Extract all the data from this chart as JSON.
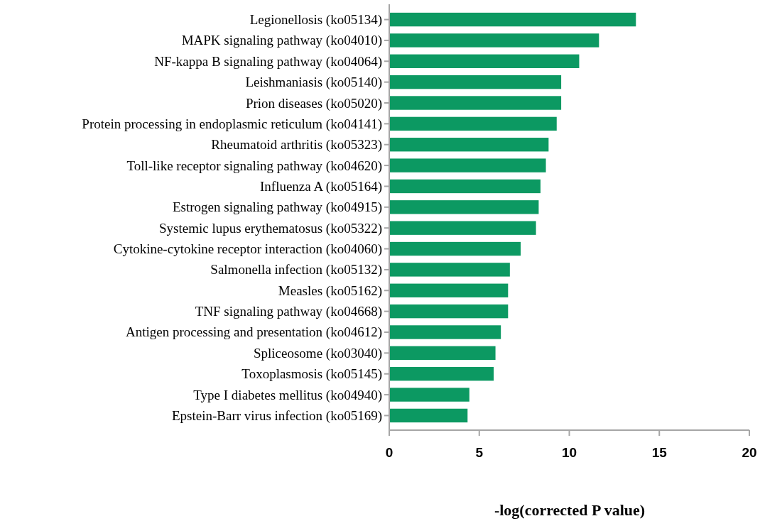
{
  "chart_data": {
    "type": "bar",
    "orientation": "horizontal",
    "xlabel": "-log(corrected P value)",
    "categories": [
      "Legionellosis (ko05134)",
      "MAPK signaling pathway (ko04010)",
      "NF-kappa B signaling pathway (ko04064)",
      "Leishmaniasis (ko05140)",
      "Prion diseases (ko05020)",
      "Protein processing in endoplasmic reticulum (ko04141)",
      "Rheumatoid arthritis (ko05323)",
      "Toll-like receptor signaling pathway (ko04620)",
      "Influenza A (ko05164)",
      "Estrogen signaling pathway (ko04915)",
      "Systemic lupus erythematosus (ko05322)",
      "Cytokine-cytokine receptor interaction (ko04060)",
      "Salmonella infection (ko05132)",
      "Measles (ko05162)",
      "TNF signaling pathway (ko04668)",
      "Antigen processing and presentation (ko04612)",
      "Spliceosome (ko03040)",
      "Toxoplasmosis (ko05145)",
      "Type I diabetes mellitus (ko04940)",
      "Epstein-Barr virus infection (ko05169)"
    ],
    "values": [
      13.7,
      11.65,
      10.55,
      9.55,
      9.55,
      9.3,
      8.85,
      8.7,
      8.4,
      8.3,
      8.15,
      7.3,
      6.7,
      6.6,
      6.6,
      6.2,
      5.9,
      5.8,
      4.45,
      4.35
    ],
    "color": "#0c9962",
    "xlim": [
      0,
      20
    ],
    "xticks": [
      0,
      5,
      10,
      15,
      20
    ],
    "grid": false
  }
}
